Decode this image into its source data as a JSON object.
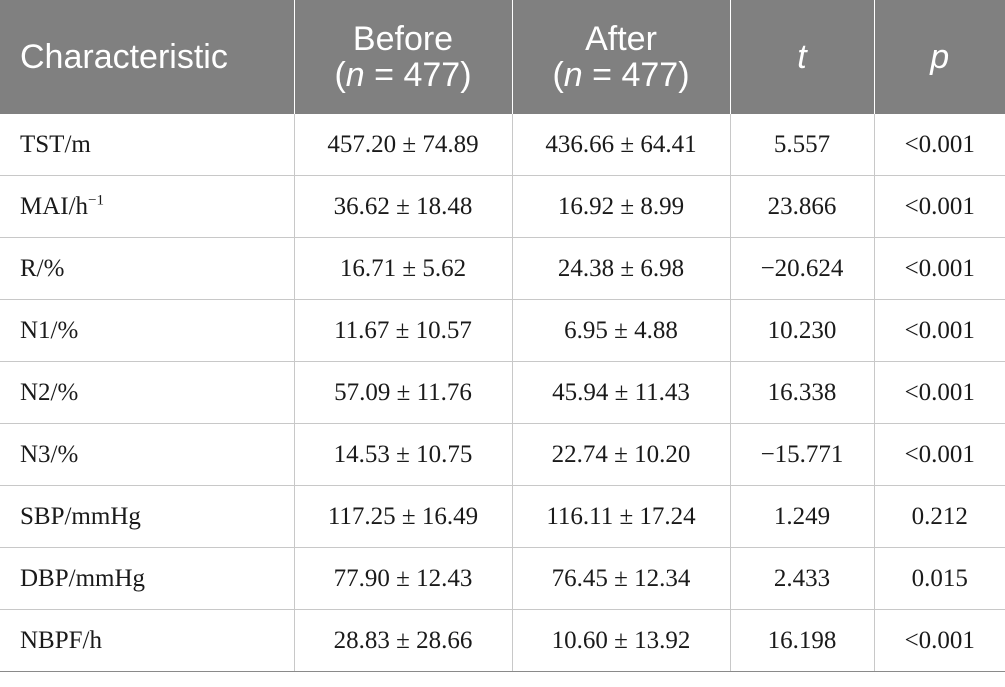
{
  "table": {
    "header": {
      "characteristic": "Characteristic",
      "before_label": "Before",
      "before_n_prefix": "(",
      "before_n_var": "n",
      "before_n_value": " = 477)",
      "after_label": "After",
      "after_n_prefix": "(",
      "after_n_var": "n",
      "after_n_value": " = 477)",
      "t": "t",
      "p": "p"
    },
    "rows": [
      {
        "name": "TST/m",
        "name_sup": "",
        "before": "457.20 ± 74.89",
        "after": "436.66 ± 64.41",
        "t": "5.557",
        "p": "<0.001"
      },
      {
        "name": "MAI/h",
        "name_sup": "−1",
        "before": "36.62 ± 18.48",
        "after": "16.92 ± 8.99",
        "t": "23.866",
        "p": "<0.001"
      },
      {
        "name": "R/%",
        "name_sup": "",
        "before": "16.71 ± 5.62",
        "after": "24.38 ± 6.98",
        "t": "−20.624",
        "p": "<0.001"
      },
      {
        "name": "N1/%",
        "name_sup": "",
        "before": "11.67 ± 10.57",
        "after": "6.95 ± 4.88",
        "t": "10.230",
        "p": "<0.001"
      },
      {
        "name": "N2/%",
        "name_sup": "",
        "before": "57.09 ± 11.76",
        "after": "45.94 ± 11.43",
        "t": "16.338",
        "p": "<0.001"
      },
      {
        "name": "N3/%",
        "name_sup": "",
        "before": "14.53 ± 10.75",
        "after": "22.74 ± 10.20",
        "t": "−15.771",
        "p": "<0.001"
      },
      {
        "name": "SBP/mmHg",
        "name_sup": "",
        "before": "117.25 ± 16.49",
        "after": "116.11 ± 17.24",
        "t": "1.249",
        "p": "0.212"
      },
      {
        "name": "DBP/mmHg",
        "name_sup": "",
        "before": "77.90 ± 12.43",
        "after": "76.45 ± 12.34",
        "t": "2.433",
        "p": "0.015"
      },
      {
        "name": "NBPF/h",
        "name_sup": "",
        "before": "28.83 ± 28.66",
        "after": "10.60 ± 13.92",
        "t": "16.198",
        "p": "<0.001"
      }
    ]
  }
}
